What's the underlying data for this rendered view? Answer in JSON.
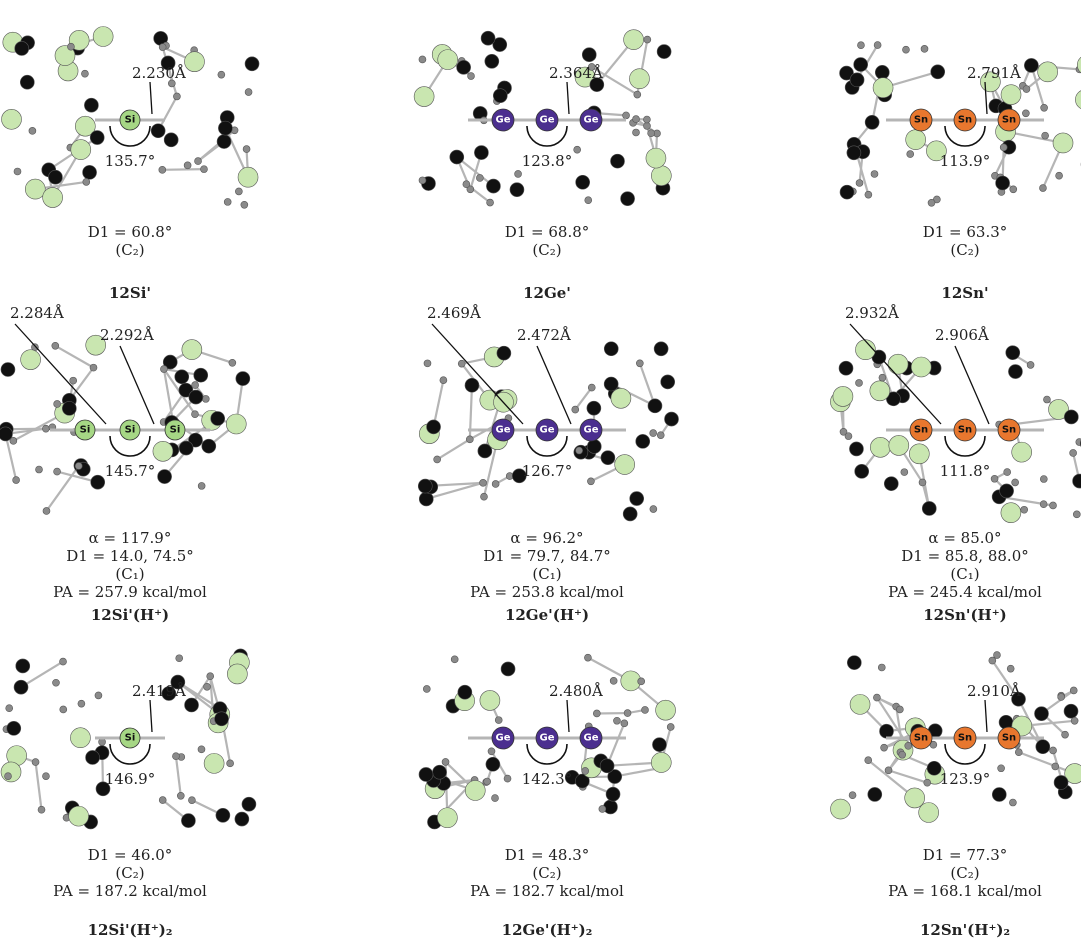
{
  "colors": {
    "Si": "#a6d785",
    "Ge": "#4b2f8f",
    "Sn": "#e8772e",
    "silyl": "#c9e6b0",
    "carbon": "#111111",
    "hydrogen": "#8a8a8a",
    "bond": "#b5b5b5"
  },
  "panels": [
    {
      "element": "Si",
      "atom_label": "Si",
      "atoms": 1,
      "bonds": [
        "2.230Å"
      ],
      "angle": "135.7°",
      "lines": [
        "D1 = 60.8°",
        "(C₂)"
      ],
      "name": "12Si'"
    },
    {
      "element": "Ge",
      "atom_label": "Ge",
      "atoms": 3,
      "bonds": [
        "2.364Å"
      ],
      "angle": "123.8°",
      "lines": [
        "D1 = 68.8°",
        "(C₂)"
      ],
      "name": "12Ge'"
    },
    {
      "element": "Sn",
      "atom_label": "Sn",
      "atoms": 3,
      "bonds": [
        "2.791Å"
      ],
      "angle": "113.9°",
      "lines": [
        "D1 = 63.3°",
        "(C₂)"
      ],
      "name": "12Sn'"
    },
    {
      "element": "Si",
      "atom_label": "Si",
      "atoms": 3,
      "bonds": [
        "2.284Å",
        "2.292Å"
      ],
      "angle": "145.7°",
      "lines": [
        "α = 117.9°",
        "D1 = 14.0, 74.5°",
        "(C₁)",
        "PA = 257.9 kcal/mol"
      ],
      "name": "12Si'(H⁺)"
    },
    {
      "element": "Ge",
      "atom_label": "Ge",
      "atoms": 3,
      "bonds": [
        "2.469Å",
        "2.472Å"
      ],
      "angle": "126.7°",
      "lines": [
        "α = 96.2°",
        "D1 = 79.7, 84.7°",
        "(C₁)",
        "PA = 253.8 kcal/mol"
      ],
      "name": "12Ge'(H⁺)"
    },
    {
      "element": "Sn",
      "atom_label": "Sn",
      "atoms": 3,
      "bonds": [
        "2.932Å",
        "2.906Å"
      ],
      "angle": "111.8°",
      "lines": [
        "α = 85.0°",
        "D1 = 85.8, 88.0°",
        "(C₁)",
        "PA = 245.4 kcal/mol"
      ],
      "name": "12Sn'(H⁺)"
    },
    {
      "element": "Si",
      "atom_label": "Si",
      "atoms": 1,
      "bonds": [
        "2.419Å"
      ],
      "angle": "146.9°",
      "lines": [
        "D1 = 46.0°",
        "(C₂)",
        "PA = 187.2 kcal/mol"
      ],
      "name": "12Si'(H⁺)₂"
    },
    {
      "element": "Ge",
      "atom_label": "Ge",
      "atoms": 3,
      "bonds": [
        "2.480Å"
      ],
      "angle": "142.3°",
      "lines": [
        "D1 = 48.3°",
        "(C₂)",
        "PA = 182.7 kcal/mol"
      ],
      "name": "12Ge'(H⁺)₂"
    },
    {
      "element": "Sn",
      "atom_label": "Sn",
      "atoms": 3,
      "bonds": [
        "2.910Å"
      ],
      "angle": "123.9°",
      "lines": [
        "D1 = 77.3°",
        "(C₂)",
        "PA = 168.1 kcal/mol"
      ],
      "name": "12Sn'(H⁺)₂"
    }
  ]
}
